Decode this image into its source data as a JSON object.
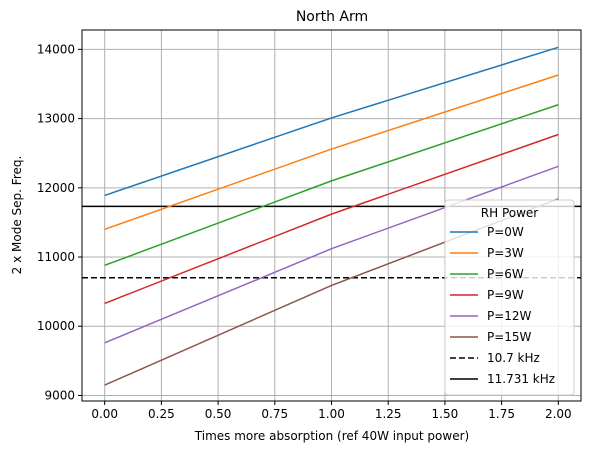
{
  "chart_data": {
    "type": "line",
    "title": "North Arm",
    "xlabel": "Times more absorption (ref 40W input power)",
    "ylabel": "2 x Mode Sep. Freq.",
    "xlim": [
      -0.1,
      2.1
    ],
    "ylim": [
      8920,
      14280
    ],
    "xticks": [
      0.0,
      0.25,
      0.5,
      0.75,
      1.0,
      1.25,
      1.5,
      1.75,
      2.0
    ],
    "xtick_labels": [
      "0.00",
      "0.25",
      "0.50",
      "0.75",
      "1.00",
      "1.25",
      "1.50",
      "1.75",
      "2.00"
    ],
    "yticks": [
      9000,
      10000,
      11000,
      12000,
      13000,
      14000
    ],
    "ytick_labels": [
      "9000",
      "10000",
      "11000",
      "12000",
      "13000",
      "14000"
    ],
    "grid": true,
    "legend": {
      "title": "RH Power",
      "location": "right"
    },
    "x": [
      0,
      1,
      2
    ],
    "series": [
      {
        "name": "P=0W",
        "color": "#1f77b4",
        "style": "solid",
        "values": [
          11890,
          13010,
          14030
        ]
      },
      {
        "name": "P=3W",
        "color": "#ff7f0e",
        "style": "solid",
        "values": [
          11400,
          12560,
          13630
        ]
      },
      {
        "name": "P=6W",
        "color": "#2ca02c",
        "style": "solid",
        "values": [
          10880,
          12100,
          13200
        ]
      },
      {
        "name": "P=9W",
        "color": "#d62728",
        "style": "solid",
        "values": [
          10330,
          11620,
          12770
        ]
      },
      {
        "name": "P=12W",
        "color": "#9467bd",
        "style": "solid",
        "values": [
          9760,
          11120,
          12310
        ]
      },
      {
        "name": "P=15W",
        "color": "#8c564b",
        "style": "solid",
        "values": [
          9150,
          10590,
          11840
        ]
      }
    ],
    "hlines": [
      {
        "name": "10.7 kHz",
        "y": 10700,
        "color": "#000000",
        "style": "dashed"
      },
      {
        "name": "11.731 kHz",
        "y": 11731,
        "color": "#000000",
        "style": "solid"
      }
    ]
  }
}
